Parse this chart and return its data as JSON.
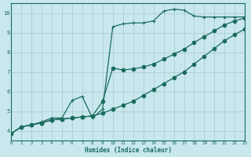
{
  "xlabel": "Humidex (Indice chaleur)",
  "xlim": [
    0,
    23
  ],
  "ylim": [
    3.5,
    10.5
  ],
  "xticks": [
    0,
    1,
    2,
    3,
    4,
    5,
    6,
    7,
    8,
    9,
    10,
    11,
    12,
    13,
    14,
    15,
    16,
    17,
    18,
    19,
    20,
    21,
    22,
    23
  ],
  "yticks": [
    4,
    5,
    6,
    7,
    8,
    9,
    10
  ],
  "bg_color": "#c8e8ee",
  "line_color": "#1a6b5e",
  "grid_color": "#a8c8cc",
  "line1_x": [
    0,
    1,
    2,
    3,
    4,
    5,
    6,
    7,
    8,
    9,
    10,
    11,
    12,
    13,
    14,
    15,
    16,
    17,
    18,
    19,
    20,
    21,
    22,
    23
  ],
  "line1_y": [
    3.85,
    4.2,
    4.3,
    4.4,
    4.55,
    4.6,
    4.65,
    4.7,
    4.75,
    4.9,
    5.1,
    5.3,
    5.5,
    5.8,
    6.1,
    6.4,
    6.7,
    7.0,
    7.4,
    7.8,
    8.2,
    8.6,
    8.9,
    9.2
  ],
  "line2_x": [
    0,
    1,
    2,
    3,
    4,
    5,
    6,
    7,
    8,
    9,
    10,
    11,
    12,
    13,
    14,
    15,
    16,
    17,
    18,
    19,
    20,
    21,
    22,
    23
  ],
  "line2_y": [
    3.85,
    4.2,
    4.3,
    4.45,
    4.65,
    4.65,
    5.55,
    5.75,
    4.65,
    5.1,
    9.3,
    9.45,
    9.5,
    9.5,
    9.6,
    10.1,
    10.2,
    10.15,
    9.85,
    9.8,
    9.8,
    9.8,
    9.8,
    9.8
  ],
  "line3_x": [
    0,
    1,
    2,
    3,
    4,
    5,
    6,
    7,
    8,
    9,
    10,
    11,
    12,
    13,
    14,
    15,
    16,
    17,
    18,
    19,
    20,
    21,
    22,
    23
  ],
  "line3_y": [
    3.85,
    4.2,
    4.3,
    4.4,
    4.55,
    4.6,
    4.65,
    4.7,
    4.75,
    5.5,
    7.2,
    7.1,
    7.15,
    7.25,
    7.4,
    7.65,
    7.9,
    8.15,
    8.5,
    8.8,
    9.1,
    9.4,
    9.6,
    9.75
  ],
  "marker2_x": [
    0,
    1,
    2,
    3,
    4,
    5,
    6,
    7,
    8,
    9,
    10,
    11,
    12,
    13,
    14,
    15,
    16,
    17,
    18,
    19,
    20,
    21,
    22,
    23
  ],
  "marker2_y": [
    3.85,
    4.2,
    4.3,
    4.45,
    4.65,
    4.65,
    5.55,
    5.75,
    4.65,
    5.1,
    9.3,
    9.45,
    9.5,
    9.5,
    9.6,
    10.1,
    10.2,
    10.15,
    9.85,
    9.8,
    9.8,
    9.8,
    9.8,
    9.8
  ]
}
